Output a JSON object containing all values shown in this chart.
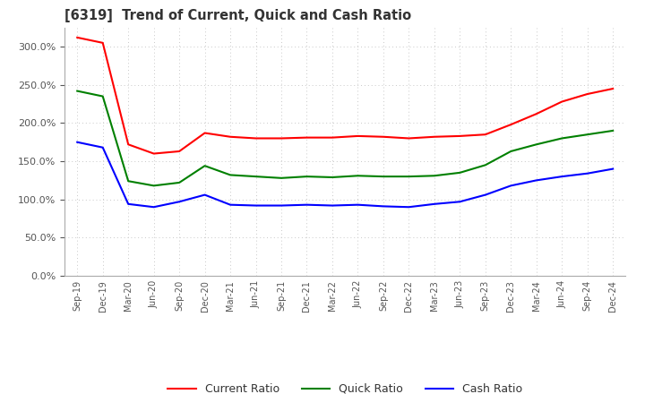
{
  "title": "[6319]  Trend of Current, Quick and Cash Ratio",
  "x_labels": [
    "Sep-19",
    "Dec-19",
    "Mar-20",
    "Jun-20",
    "Sep-20",
    "Dec-20",
    "Mar-21",
    "Jun-21",
    "Sep-21",
    "Dec-21",
    "Mar-22",
    "Jun-22",
    "Sep-22",
    "Dec-22",
    "Mar-23",
    "Jun-23",
    "Sep-23",
    "Dec-23",
    "Mar-24",
    "Jun-24",
    "Sep-24",
    "Dec-24"
  ],
  "current_ratio": [
    312.0,
    305.0,
    172.0,
    160.0,
    163.0,
    187.0,
    182.0,
    180.0,
    180.0,
    181.0,
    181.0,
    183.0,
    182.0,
    180.0,
    182.0,
    183.0,
    185.0,
    198.0,
    212.0,
    228.0,
    238.0,
    245.0
  ],
  "quick_ratio": [
    242.0,
    235.0,
    124.0,
    118.0,
    122.0,
    144.0,
    132.0,
    130.0,
    128.0,
    130.0,
    129.0,
    131.0,
    130.0,
    130.0,
    131.0,
    135.0,
    145.0,
    163.0,
    172.0,
    180.0,
    185.0,
    190.0
  ],
  "cash_ratio": [
    175.0,
    168.0,
    94.0,
    90.0,
    97.0,
    106.0,
    93.0,
    92.0,
    92.0,
    93.0,
    92.0,
    93.0,
    91.0,
    90.0,
    94.0,
    97.0,
    106.0,
    118.0,
    125.0,
    130.0,
    134.0,
    140.0
  ],
  "current_color": "#ff0000",
  "quick_color": "#008000",
  "cash_color": "#0000ff",
  "ylim": [
    0,
    325
  ],
  "yticks": [
    0,
    50,
    100,
    150,
    200,
    250,
    300
  ],
  "background_color": "#ffffff",
  "grid_color": "#c8c8c8"
}
